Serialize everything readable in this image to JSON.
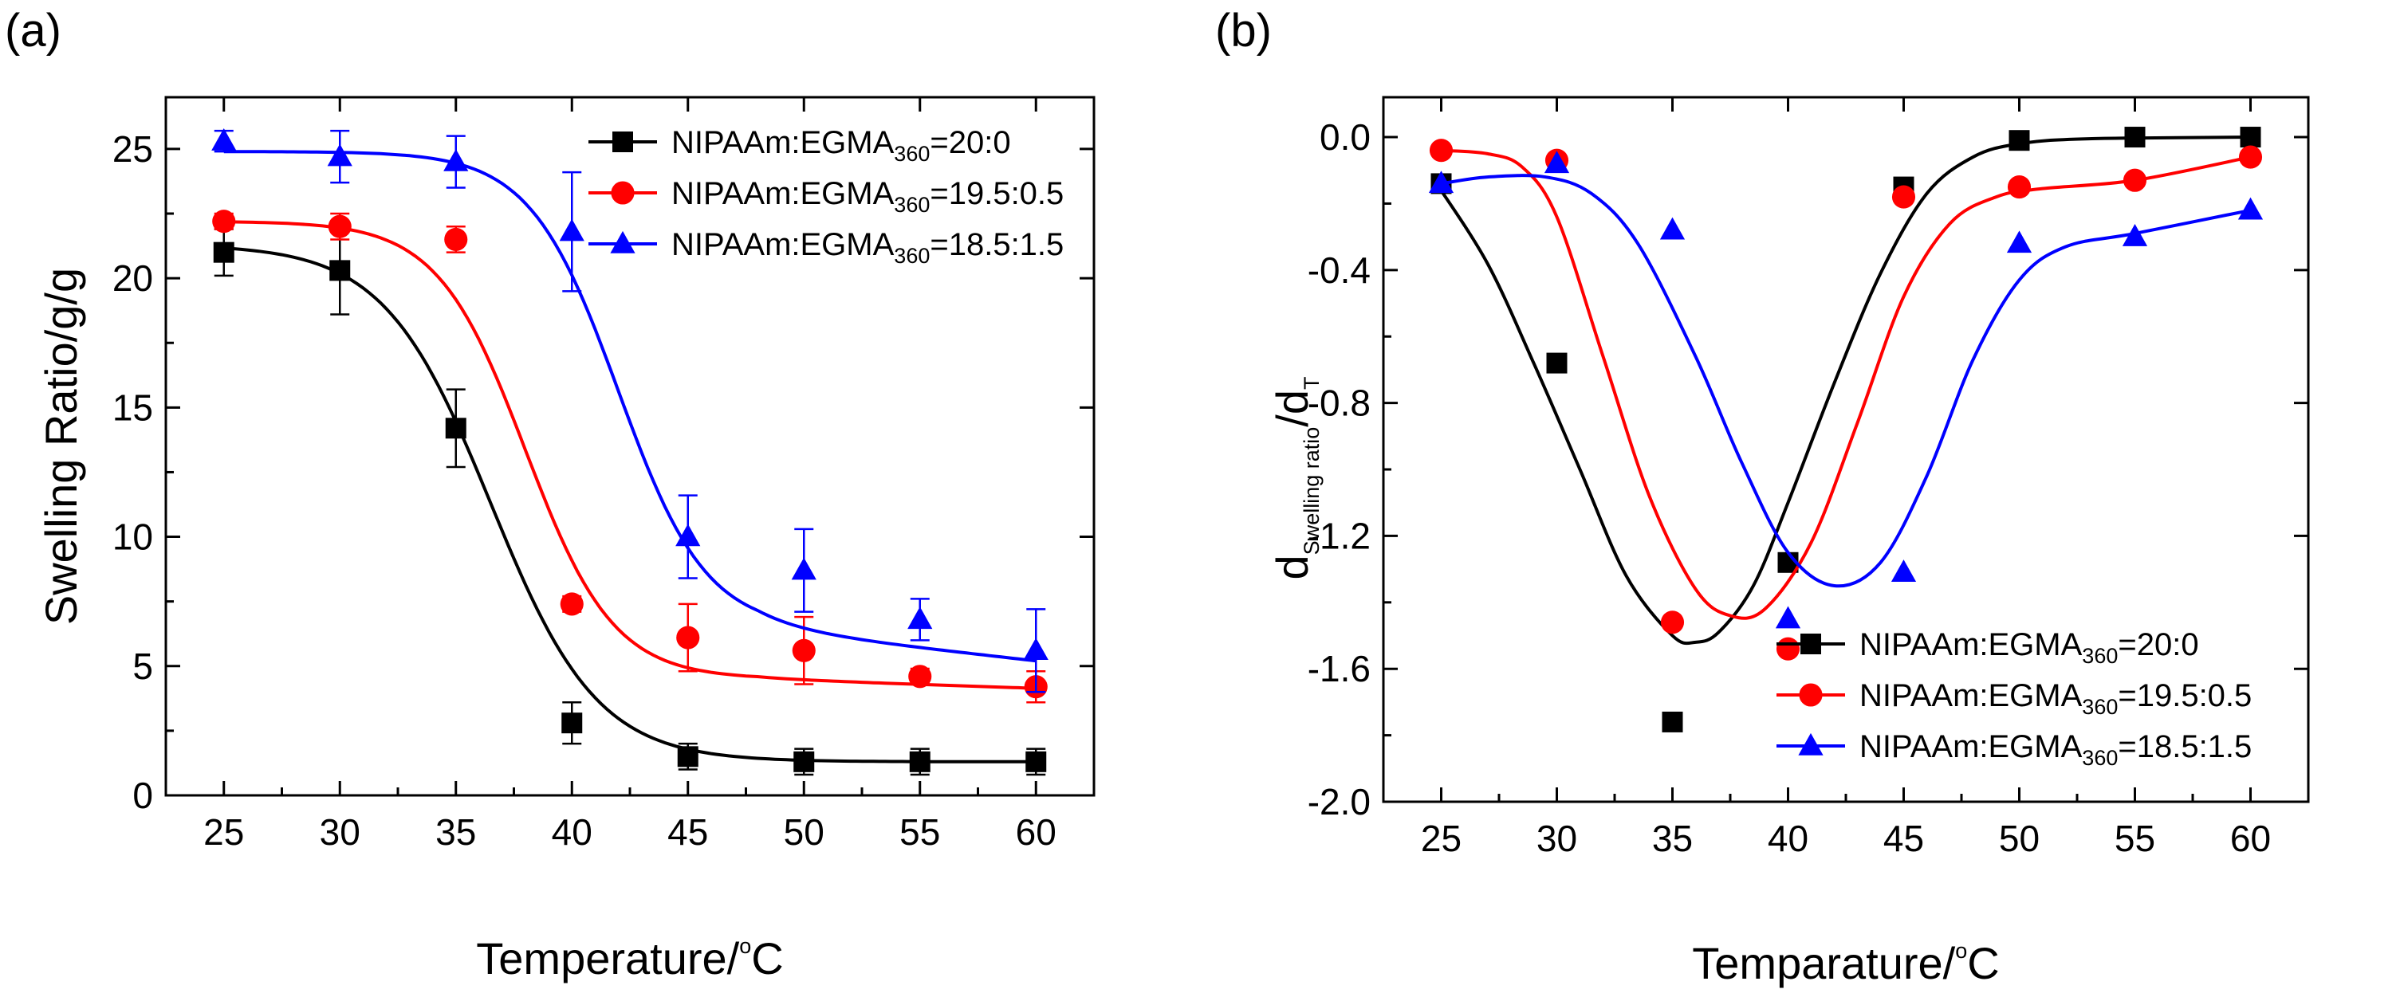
{
  "chart_data": [
    {
      "panel_label": "(a)",
      "type": "line",
      "x_label": "Temperature/",
      "x_label_sup": "o",
      "x_label_tail": "C",
      "y_label": "Swelling Ratio/g/g",
      "xlim": [
        22.5,
        62.5
      ],
      "ylim": [
        0,
        27
      ],
      "x_ticks": [
        25,
        30,
        35,
        40,
        45,
        50,
        55,
        60
      ],
      "y_ticks": [
        0,
        5,
        10,
        15,
        20,
        25
      ],
      "legend_position": "top-right",
      "series": [
        {
          "legend_prefix": "NIPAAm:EGMA",
          "legend_sub": "360",
          "legend_suffix": "=20:0",
          "color": "#000000",
          "marker": "square",
          "x": [
            25,
            30,
            35,
            40,
            45,
            50,
            55,
            60
          ],
          "y": [
            21.0,
            20.3,
            14.2,
            2.8,
            1.5,
            1.3,
            1.3,
            1.3
          ],
          "error": [
            0.9,
            1.7,
            1.5,
            0.8,
            0.5,
            0.5,
            0.5,
            0.5
          ],
          "fit": {
            "top": 21.3,
            "bottom": 1.3,
            "x0": 36.5,
            "dx": 2.3
          }
        },
        {
          "legend_prefix": "NIPAAm:EGMA",
          "legend_sub": "360",
          "legend_suffix": "=19.5:0.5",
          "color": "#ff0000",
          "marker": "circle",
          "x": [
            25,
            30,
            35,
            40,
            45,
            50,
            55,
            60
          ],
          "y": [
            22.2,
            22.0,
            21.5,
            7.4,
            6.1,
            5.6,
            4.6,
            4.2
          ],
          "error": [
            0.3,
            0.5,
            0.5,
            0.3,
            1.3,
            1.3,
            0.3,
            0.6
          ],
          "fit": {
            "top": 22.2,
            "bottom": 4.5,
            "x0": 38.0,
            "dx": 1.9,
            "tail": -0.03
          }
        },
        {
          "legend_prefix": "NIPAAm:EGMA",
          "legend_sub": "360",
          "legend_suffix": "=18.5:1.5",
          "color": "#0000ff",
          "marker": "triangle",
          "x": [
            25,
            30,
            35,
            40,
            45,
            50,
            55,
            60
          ],
          "y": [
            25.3,
            24.7,
            24.5,
            21.8,
            10.0,
            8.7,
            6.8,
            5.6
          ],
          "error": [
            0.4,
            1.0,
            1.0,
            2.3,
            1.6,
            1.6,
            0.8,
            1.6
          ],
          "fit": {
            "top": 24.9,
            "bottom": 6.4,
            "x0": 42.0,
            "dx": 1.9,
            "tail": -0.1
          }
        }
      ]
    },
    {
      "panel_label": "(b)",
      "type": "line",
      "x_label": "Temparature/",
      "x_label_sup": "o",
      "x_label_tail": "C",
      "y_label_main": "d",
      "y_label_sub": "Swelling ratio",
      "y_label_mid": "/d",
      "y_label_sub2": "T",
      "xlim": [
        22.5,
        62.5
      ],
      "ylim": [
        -2.0,
        0.12
      ],
      "x_ticks": [
        25,
        30,
        35,
        40,
        45,
        50,
        55,
        60
      ],
      "y_ticks": [
        0.0,
        -0.4,
        -0.8,
        -1.2,
        -1.6,
        -2.0
      ],
      "y_tick_labels": [
        "0.0",
        "-0.4",
        "-0.8",
        "-1.2",
        "-1.6",
        "-2.0"
      ],
      "legend_position": "bottom-right",
      "series": [
        {
          "legend_prefix": "NIPAAm:EGMA",
          "legend_sub": "360",
          "legend_suffix": "=20:0",
          "color": "#000000",
          "marker": "square",
          "x": [
            25,
            30,
            35,
            40,
            45,
            50,
            55,
            60
          ],
          "y": [
            -0.14,
            -0.68,
            -1.76,
            -1.28,
            -0.15,
            -0.01,
            0.0,
            0.0
          ],
          "curve": [
            [
              24.8,
              -0.14
            ],
            [
              27,
              -0.38
            ],
            [
              29,
              -0.68
            ],
            [
              31,
              -1.0
            ],
            [
              33,
              -1.32
            ],
            [
              35,
              -1.5
            ],
            [
              36,
              -1.52
            ],
            [
              37,
              -1.49
            ],
            [
              38.5,
              -1.35
            ],
            [
              40,
              -1.1
            ],
            [
              42,
              -0.74
            ],
            [
              44,
              -0.41
            ],
            [
              46,
              -0.17
            ],
            [
              48,
              -0.06
            ],
            [
              50,
              -0.02
            ],
            [
              53,
              -0.005
            ],
            [
              60,
              0.0
            ]
          ]
        },
        {
          "legend_prefix": "NIPAAm:EGMA",
          "legend_sub": "360",
          "legend_suffix": "=19.5:0.5",
          "color": "#ff0000",
          "marker": "circle",
          "x": [
            25,
            30,
            35,
            40,
            45,
            50,
            55,
            60
          ],
          "y": [
            -0.04,
            -0.07,
            -1.46,
            -1.54,
            -0.18,
            -0.15,
            -0.13,
            -0.06
          ],
          "curve": [
            [
              25,
              -0.04
            ],
            [
              27,
              -0.05
            ],
            [
              28.5,
              -0.09
            ],
            [
              30,
              -0.24
            ],
            [
              32,
              -0.66
            ],
            [
              34,
              -1.08
            ],
            [
              36,
              -1.36
            ],
            [
              37.5,
              -1.44
            ],
            [
              39,
              -1.42
            ],
            [
              41,
              -1.22
            ],
            [
              43,
              -0.86
            ],
            [
              45,
              -0.48
            ],
            [
              47,
              -0.26
            ],
            [
              49,
              -0.18
            ],
            [
              51,
              -0.155
            ],
            [
              55,
              -0.13
            ],
            [
              60,
              -0.06
            ]
          ]
        },
        {
          "legend_prefix": "NIPAAm:EGMA",
          "legend_sub": "360",
          "legend_suffix": "=18.5:1.5",
          "color": "#0000ff",
          "marker": "triangle",
          "x": [
            25,
            30,
            35,
            40,
            45,
            50,
            55,
            60
          ],
          "y": [
            -0.14,
            -0.08,
            -0.28,
            -1.45,
            -1.31,
            -0.32,
            -0.3,
            -0.22
          ],
          "curve": [
            [
              25,
              -0.14
            ],
            [
              27,
              -0.12
            ],
            [
              29.5,
              -0.12
            ],
            [
              31.5,
              -0.17
            ],
            [
              33.5,
              -0.32
            ],
            [
              36,
              -0.66
            ],
            [
              38,
              -0.98
            ],
            [
              40,
              -1.25
            ],
            [
              42,
              -1.35
            ],
            [
              44,
              -1.28
            ],
            [
              46,
              -1.02
            ],
            [
              48,
              -0.67
            ],
            [
              50,
              -0.43
            ],
            [
              52,
              -0.33
            ],
            [
              55,
              -0.29
            ],
            [
              60,
              -0.22
            ]
          ]
        }
      ]
    }
  ]
}
